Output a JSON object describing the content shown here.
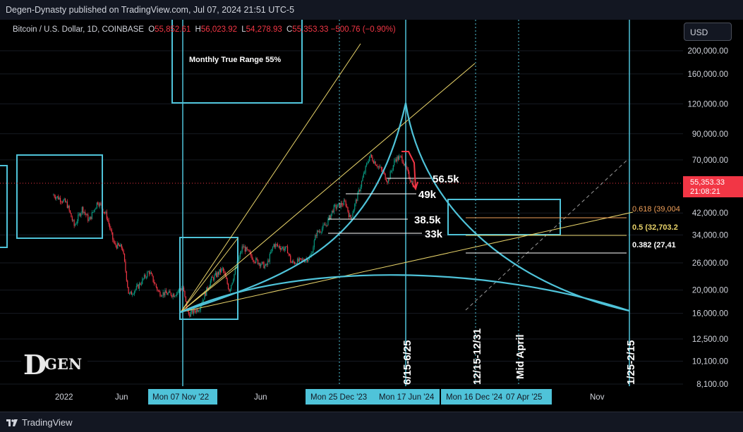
{
  "header": {
    "publisher_line": "Degen-Dynasty published on TradingView.com, Jul 07, 2024 21:51 UTC-5"
  },
  "legend": {
    "symbol": "Bitcoin / U.S. Dollar, 1D, COINBASE",
    "open_label": "O",
    "open": "55,852.61",
    "high_label": "H",
    "high": "56,023.92",
    "low_label": "L",
    "low": "54,278.93",
    "close_label": "C",
    "close": "55,353.33",
    "change": "−500.76 (−0.90%)"
  },
  "currency_button": {
    "label": "USD"
  },
  "footer": {
    "brand": "TradingView"
  },
  "logo": {
    "text_d": "D",
    "text_gen": "GEN"
  },
  "colors": {
    "background": "#000000",
    "cyan": "#4fc3d9",
    "yellow": "#e8d36a",
    "red": "#f23645",
    "green": "#089981",
    "price_label_bg": "#f23645"
  },
  "chart_data": {
    "type": "candlestick",
    "scale": "log",
    "y_ticks": [
      "200,000.00",
      "160,000.00",
      "120,000.00",
      "90,000.00",
      "70,000.00",
      "42,000.00",
      "34,000.00",
      "26,000.00",
      "20,000.00",
      "16,000.00",
      "12,500.00",
      "10,100.00",
      "8,100.00"
    ],
    "y_tick_values": [
      200000,
      160000,
      120000,
      90000,
      70000,
      42000,
      34000,
      26000,
      20000,
      16000,
      12500,
      10100,
      8100
    ],
    "x_ticks": [
      "2022",
      "Jun",
      "Mon 07 Nov '22",
      "Jun",
      "Mon 25 Dec '23",
      "Mon 17 Jun '24",
      "Mon 16 Dec '24",
      "07 Apr '25",
      "Nov"
    ],
    "current_price": {
      "value": 55353.33,
      "label": "55,353.33",
      "countdown": "21:08:21"
    },
    "fib_levels": [
      {
        "label": "0.618 (39,004",
        "value": 39004
      },
      {
        "label": "0.5 (32,703.2",
        "value": 32703.2
      },
      {
        "label": "0.382 (27,41",
        "value": 27410
      }
    ],
    "price_annotations": [
      {
        "label": "56.5k",
        "value": 56500
      },
      {
        "label": "49k",
        "value": 49000
      },
      {
        "label": "38.5k",
        "value": 38500
      },
      {
        "label": "33k",
        "value": 33000
      }
    ],
    "box_annotation": "Monthly True Range 55%",
    "vertical_date_labels": [
      "6/15-6/25",
      "12/15-12/31",
      "Mid April",
      "1/25-2/15"
    ],
    "price_path": [
      {
        "t": "2021-12-01",
        "p": 50000
      },
      {
        "t": "2021-12-20",
        "p": 48000
      },
      {
        "t": "2022-01-05",
        "p": 46000
      },
      {
        "t": "2022-01-25",
        "p": 37000
      },
      {
        "t": "2022-02-15",
        "p": 44000
      },
      {
        "t": "2022-03-05",
        "p": 39000
      },
      {
        "t": "2022-03-28",
        "p": 47000
      },
      {
        "t": "2022-04-20",
        "p": 41000
      },
      {
        "t": "2022-05-10",
        "p": 31000
      },
      {
        "t": "2022-06-01",
        "p": 30000
      },
      {
        "t": "2022-06-18",
        "p": 19000
      },
      {
        "t": "2022-07-10",
        "p": 20500
      },
      {
        "t": "2022-08-10",
        "p": 24000
      },
      {
        "t": "2022-09-05",
        "p": 19500
      },
      {
        "t": "2022-10-15",
        "p": 19200
      },
      {
        "t": "2022-11-07",
        "p": 20600
      },
      {
        "t": "2022-11-21",
        "p": 15800
      },
      {
        "t": "2022-12-20",
        "p": 16800
      },
      {
        "t": "2023-01-20",
        "p": 22000
      },
      {
        "t": "2023-02-20",
        "p": 24500
      },
      {
        "t": "2023-03-10",
        "p": 20000
      },
      {
        "t": "2023-04-14",
        "p": 30500
      },
      {
        "t": "2023-05-15",
        "p": 26800
      },
      {
        "t": "2023-06-15",
        "p": 25000
      },
      {
        "t": "2023-07-05",
        "p": 31000
      },
      {
        "t": "2023-08-10",
        "p": 29500
      },
      {
        "t": "2023-08-20",
        "p": 26000
      },
      {
        "t": "2023-09-15",
        "p": 26500
      },
      {
        "t": "2023-10-10",
        "p": 27500
      },
      {
        "t": "2023-10-25",
        "p": 34500
      },
      {
        "t": "2023-11-20",
        "p": 37500
      },
      {
        "t": "2023-12-10",
        "p": 44000
      },
      {
        "t": "2024-01-10",
        "p": 46500
      },
      {
        "t": "2024-01-23",
        "p": 39500
      },
      {
        "t": "2024-02-15",
        "p": 52000
      },
      {
        "t": "2024-03-05",
        "p": 66000
      },
      {
        "t": "2024-03-14",
        "p": 73000
      },
      {
        "t": "2024-04-15",
        "p": 63000
      },
      {
        "t": "2024-05-01",
        "p": 57000
      },
      {
        "t": "2024-05-21",
        "p": 71000
      },
      {
        "t": "2024-06-07",
        "p": 71500
      },
      {
        "t": "2024-06-24",
        "p": 60500
      },
      {
        "t": "2024-07-07",
        "p": 55353
      }
    ]
  }
}
